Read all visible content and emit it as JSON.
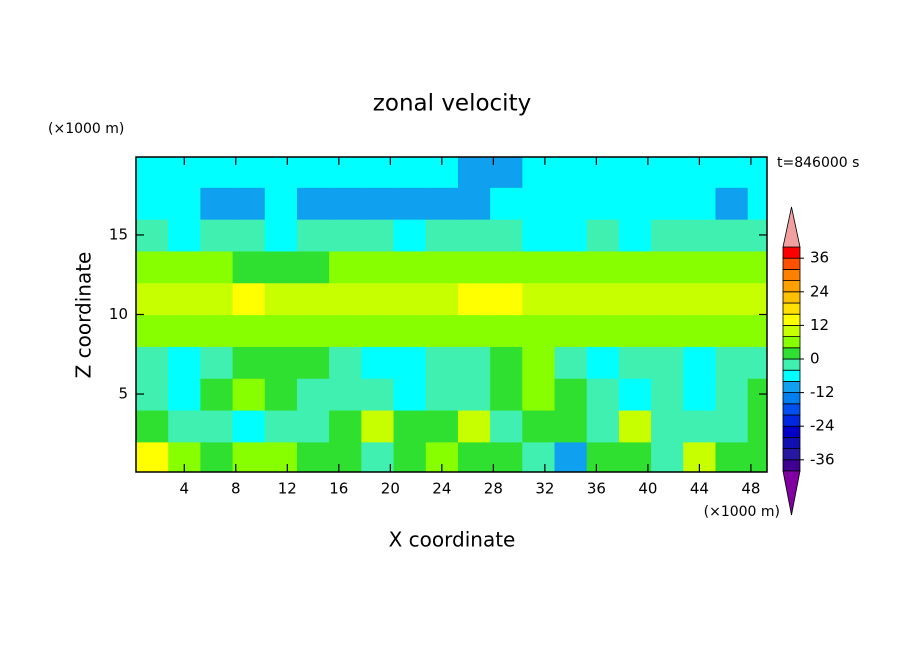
{
  "chart_data": {
    "type": "contour",
    "title": "zonal velocity",
    "x_label": "X coordinate",
    "y_label": "Z coordinate",
    "x_unit_label": "(×1000 m)",
    "y_unit_label": "(×1000 m)",
    "annotation": "t=846000 s",
    "x": [
      1.5,
      4,
      6.5,
      9,
      11.5,
      14,
      16.5,
      19,
      21.5,
      24,
      26.5,
      29,
      31.5,
      34,
      36.5,
      39,
      41.5,
      44,
      46.5,
      49
    ],
    "y": [
      1,
      3,
      5,
      7,
      9,
      11,
      13,
      15,
      17,
      19
    ],
    "values": [
      [
        13,
        6,
        2,
        6,
        6,
        2,
        2,
        -2,
        2,
        6,
        2,
        2,
        -2,
        -10,
        2,
        2,
        -2,
        10,
        2,
        2
      ],
      [
        2,
        -2,
        -2,
        -6,
        -2,
        -2,
        2,
        10,
        2,
        2,
        10,
        -2,
        2,
        2,
        -2,
        10,
        -2,
        -2,
        -2,
        2
      ],
      [
        -2,
        -6,
        2,
        6,
        2,
        -2,
        -2,
        -2,
        -6,
        -2,
        -2,
        2,
        6,
        2,
        -2,
        -6,
        -2,
        -6,
        -2,
        2
      ],
      [
        -2,
        -6,
        -2,
        2,
        2,
        2,
        -2,
        -6,
        -6,
        -2,
        -2,
        2,
        6,
        -2,
        -6,
        -2,
        -2,
        -6,
        -2,
        -2
      ],
      [
        6,
        6,
        6,
        6,
        6,
        6,
        6,
        6,
        6,
        6,
        6,
        6,
        6,
        6,
        6,
        6,
        6,
        6,
        6,
        6
      ],
      [
        10,
        10,
        10,
        13,
        10,
        10,
        10,
        10,
        10,
        10,
        13,
        13,
        10,
        10,
        10,
        10,
        10,
        10,
        10,
        10
      ],
      [
        6,
        6,
        6,
        2,
        2,
        2,
        6,
        6,
        6,
        6,
        6,
        6,
        6,
        6,
        6,
        6,
        6,
        6,
        6,
        6
      ],
      [
        -2,
        -6,
        -2,
        -2,
        -6,
        -2,
        -2,
        -2,
        -6,
        -2,
        -2,
        -2,
        -6,
        -6,
        -2,
        -6,
        -2,
        -2,
        -2,
        -2
      ],
      [
        -6,
        -6,
        -10,
        -10,
        -6,
        -10,
        -10,
        -10,
        -10,
        -10,
        -10,
        -6,
        -6,
        -6,
        -6,
        -6,
        -6,
        -6,
        -10,
        -6
      ],
      [
        -6,
        -6,
        -6,
        -6,
        -6,
        -6,
        -6,
        -6,
        -6,
        -6,
        -10,
        -10,
        -6,
        -6,
        -6,
        -6,
        -6,
        -6,
        -6,
        -6
      ]
    ],
    "xlim": [
      0.25,
      49.25
    ],
    "ylim": [
      0.1,
      19.9
    ],
    "xticks": [
      4,
      8,
      12,
      16,
      20,
      24,
      28,
      32,
      36,
      40,
      44,
      48
    ],
    "yticks": [
      5,
      10,
      15
    ],
    "clim": [
      -40,
      40
    ],
    "cticks": [
      -36,
      -24,
      -12,
      0,
      12,
      24,
      36
    ],
    "colors": [
      "#400090",
      "#2818a0",
      "#1010b0",
      "#0000c8",
      "#0028e0",
      "#0050f0",
      "#0080f0",
      "#10a0f0",
      "#00ffff",
      "#40f0b0",
      "#30e030",
      "#88ff00",
      "#c8ff00",
      "#ffff00",
      "#ffe000",
      "#ffc000",
      "#ffa000",
      "#ff8000",
      "#ff5000",
      "#ff0000"
    ],
    "under_color": "#8000a0",
    "over_color": "#f0a0a0"
  }
}
